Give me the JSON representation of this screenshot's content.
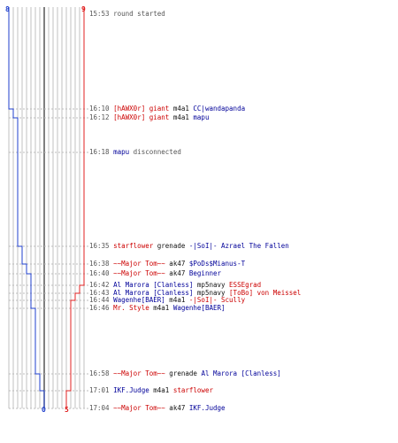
{
  "colors": {
    "blue_team": "#1f3fcc",
    "red_team": "#e02020",
    "grid": "#c0c0c0",
    "center_line": "#555555"
  },
  "scores": {
    "blue_start": "8",
    "red_start": "9",
    "blue_end": "0",
    "red_end": "5"
  },
  "events": [
    {
      "time": "15:53",
      "parts": [
        {
          "text": "round started",
          "color": "gray"
        }
      ]
    },
    {
      "time": "16:10",
      "parts": [
        {
          "text": "[hAWX0r]",
          "color": "red"
        },
        {
          "text": " giant ",
          "color": "red"
        },
        {
          "text": "m4a1",
          "color": "dark"
        },
        {
          "text": " CC|wandapanda",
          "color": "blue"
        }
      ]
    },
    {
      "time": "16:12",
      "parts": [
        {
          "text": "[hAWX0r]",
          "color": "red"
        },
        {
          "text": " giant ",
          "color": "red"
        },
        {
          "text": "m4a1",
          "color": "dark"
        },
        {
          "text": " mapu",
          "color": "blue"
        }
      ]
    },
    {
      "time": "16:18",
      "parts": [
        {
          "text": "mapu",
          "color": "blue"
        },
        {
          "text": " disconnected",
          "color": "gray"
        }
      ]
    },
    {
      "time": "16:35",
      "parts": [
        {
          "text": "starflower",
          "color": "red"
        },
        {
          "text": " grenade ",
          "color": "dark"
        },
        {
          "text": "-|SoI|- Azrael The Fallen",
          "color": "blue"
        }
      ]
    },
    {
      "time": "16:38",
      "parts": [
        {
          "text": "~~Major Tom~~",
          "color": "red"
        },
        {
          "text": " ak47 ",
          "color": "dark"
        },
        {
          "text": "$PoDs$Mianus-T",
          "color": "blue"
        }
      ]
    },
    {
      "time": "16:40",
      "parts": [
        {
          "text": "~~Major Tom~~",
          "color": "red"
        },
        {
          "text": " ak47 ",
          "color": "dark"
        },
        {
          "text": "Beginner",
          "color": "blue"
        }
      ]
    },
    {
      "time": "16:42",
      "parts": [
        {
          "text": "Al Marora [Clanless]",
          "color": "blue"
        },
        {
          "text": " mp5navy ",
          "color": "dark"
        },
        {
          "text": "ESSEgrad",
          "color": "red"
        }
      ]
    },
    {
      "time": "16:43",
      "parts": [
        {
          "text": "Al Marora [Clanless]",
          "color": "blue"
        },
        {
          "text": " mp5navy ",
          "color": "dark"
        },
        {
          "text": "[ToBo] von Meissel",
          "color": "red"
        }
      ]
    },
    {
      "time": "16:44",
      "parts": [
        {
          "text": "Wagenhe[BAER]",
          "color": "blue"
        },
        {
          "text": " m4a1 ",
          "color": "dark"
        },
        {
          "text": "-|SoI|- Scully",
          "color": "red"
        }
      ]
    },
    {
      "time": "16:46",
      "parts": [
        {
          "text": "Mr. Style",
          "color": "red"
        },
        {
          "text": " m4a1 ",
          "color": "dark"
        },
        {
          "text": "Wagenhe[BAER]",
          "color": "blue"
        }
      ]
    },
    {
      "time": "16:58",
      "parts": [
        {
          "text": "~~Major Tom~~",
          "color": "red"
        },
        {
          "text": " grenade ",
          "color": "dark"
        },
        {
          "text": "Al Marora [Clanless]",
          "color": "blue"
        }
      ]
    },
    {
      "time": "17:01",
      "parts": [
        {
          "text": "IKF.Judge",
          "color": "blue"
        },
        {
          "text": " m4a1 ",
          "color": "dark"
        },
        {
          "text": "starflower",
          "color": "red"
        }
      ]
    },
    {
      "time": "17:04",
      "parts": [
        {
          "text": "~~Major Tom~~",
          "color": "red"
        },
        {
          "text": " ak47 ",
          "color": "dark"
        },
        {
          "text": "IKF.Judge",
          "color": "blue"
        }
      ]
    }
  ]
}
